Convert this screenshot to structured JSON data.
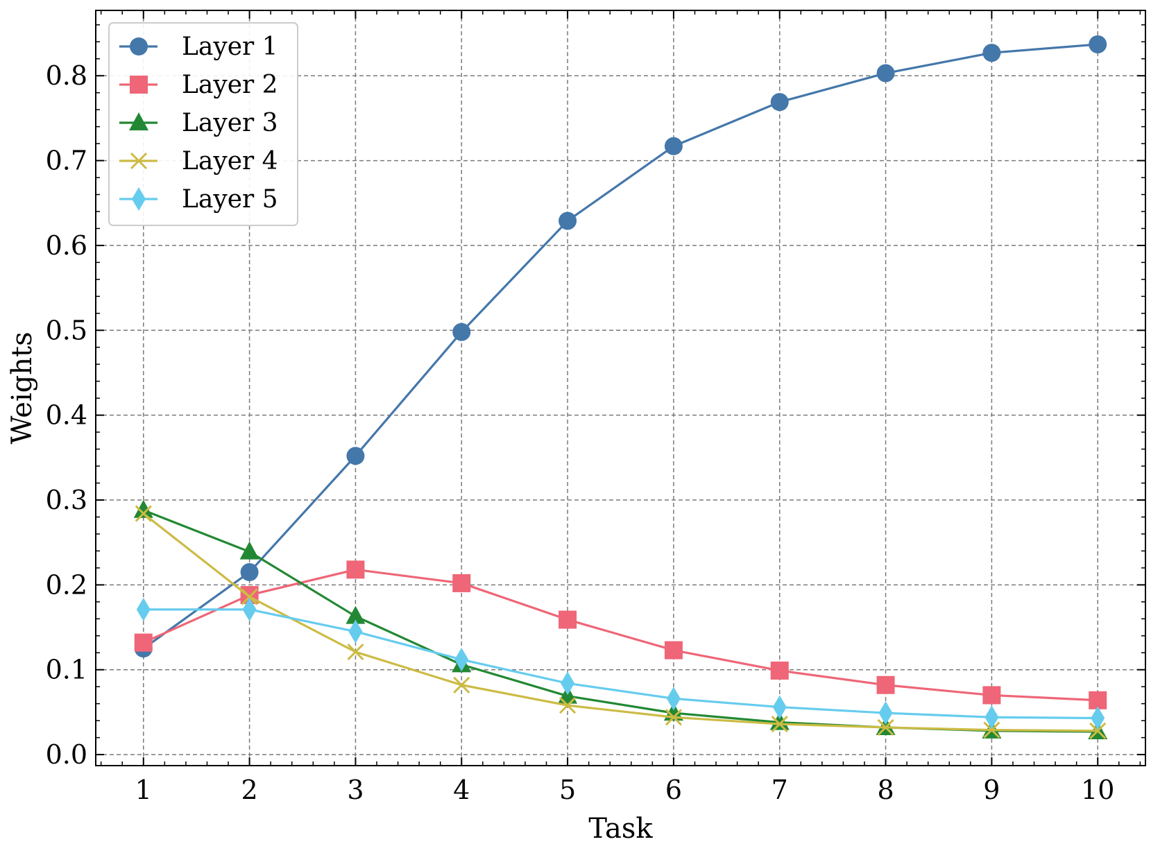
{
  "chart_data": {
    "type": "line",
    "xlabel": "Task",
    "ylabel": "Weights",
    "x": [
      1,
      2,
      3,
      4,
      5,
      6,
      7,
      8,
      9,
      10
    ],
    "xlim": [
      0.55,
      10.45
    ],
    "ylim": [
      -0.013,
      0.877
    ],
    "xticks": [
      "1",
      "2",
      "3",
      "4",
      "5",
      "6",
      "7",
      "8",
      "9",
      "10"
    ],
    "yticks": [
      "0.0",
      "0.1",
      "0.2",
      "0.3",
      "0.4",
      "0.5",
      "0.6",
      "0.7",
      "0.8"
    ],
    "grid": true,
    "legend_position": "upper-left",
    "series": [
      {
        "name": "Layer 1",
        "color": "#4477aa",
        "marker": "circle",
        "values": [
          0.125,
          0.215,
          0.352,
          0.498,
          0.629,
          0.717,
          0.769,
          0.803,
          0.827,
          0.837
        ]
      },
      {
        "name": "Layer 2",
        "color": "#ee6677",
        "marker": "square",
        "values": [
          0.132,
          0.188,
          0.218,
          0.202,
          0.159,
          0.123,
          0.099,
          0.082,
          0.07,
          0.064
        ]
      },
      {
        "name": "Layer 3",
        "color": "#228833",
        "marker": "triangle",
        "values": [
          0.288,
          0.239,
          0.163,
          0.106,
          0.069,
          0.049,
          0.038,
          0.032,
          0.028,
          0.027
        ]
      },
      {
        "name": "Layer 4",
        "color": "#ccbb44",
        "marker": "x",
        "values": [
          0.284,
          0.186,
          0.121,
          0.082,
          0.058,
          0.044,
          0.036,
          0.032,
          0.029,
          0.028
        ]
      },
      {
        "name": "Layer 5",
        "color": "#66ccee",
        "marker": "diamond",
        "values": [
          0.171,
          0.171,
          0.145,
          0.112,
          0.084,
          0.066,
          0.056,
          0.049,
          0.044,
          0.043
        ]
      }
    ]
  }
}
